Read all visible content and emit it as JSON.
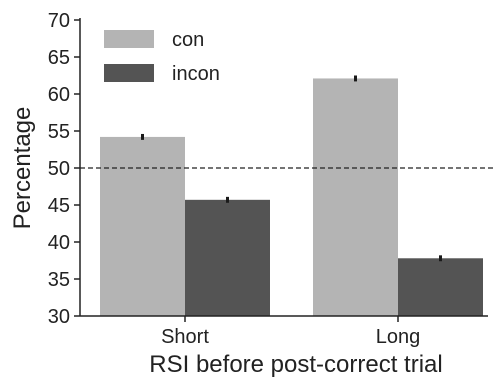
{
  "chart_data": {
    "type": "bar",
    "title": "",
    "xlabel": "RSI before post-correct trial",
    "ylabel": "Percentage",
    "categories": [
      "Short",
      "Long"
    ],
    "series": [
      {
        "name": "con",
        "values": [
          54.2,
          62.1
        ],
        "errors": [
          0.4,
          0.4
        ],
        "color": "#b4b4b4"
      },
      {
        "name": "incon",
        "values": [
          45.7,
          37.8
        ],
        "errors": [
          0.4,
          0.4
        ],
        "color": "#545454"
      }
    ],
    "ylim": [
      30,
      70
    ],
    "yticks": [
      30,
      35,
      40,
      45,
      50,
      55,
      60,
      65,
      70
    ],
    "reference_line": {
      "y": 50,
      "style": "dashed"
    },
    "legend": "top-left",
    "grid": false,
    "error_bar_color": "#1a1a1a"
  }
}
